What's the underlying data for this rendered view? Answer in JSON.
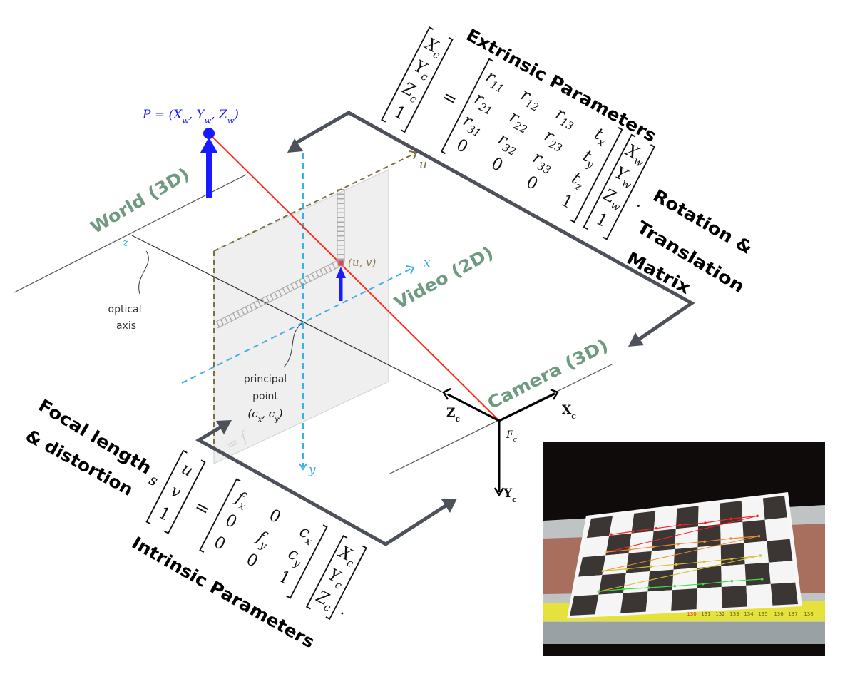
{
  "extrinsic": {
    "title": "Extrinsic Parameters",
    "lhs": [
      [
        {
          "b": "X",
          "s": "c"
        }
      ],
      [
        {
          "b": "Y",
          "s": "c"
        }
      ],
      [
        {
          "b": "Z",
          "s": "c"
        }
      ],
      [
        {
          "b": "1",
          "s": ""
        }
      ]
    ],
    "equals": "=",
    "matrix": [
      [
        [
          {
            "b": "r",
            "s": "11"
          }
        ],
        [
          {
            "b": "r",
            "s": "12"
          }
        ],
        [
          {
            "b": "r",
            "s": "13"
          }
        ],
        [
          {
            "b": "t",
            "s": "x"
          }
        ]
      ],
      [
        [
          {
            "b": "r",
            "s": "21"
          }
        ],
        [
          {
            "b": "r",
            "s": "22"
          }
        ],
        [
          {
            "b": "r",
            "s": "23"
          }
        ],
        [
          {
            "b": "t",
            "s": "y"
          }
        ]
      ],
      [
        [
          {
            "b": "r",
            "s": "31"
          }
        ],
        [
          {
            "b": "r",
            "s": "32"
          }
        ],
        [
          {
            "b": "r",
            "s": "33"
          }
        ],
        [
          {
            "b": "t",
            "s": "z"
          }
        ]
      ],
      [
        [
          {
            "b": "0",
            "s": ""
          }
        ],
        [
          {
            "b": "0",
            "s": ""
          }
        ],
        [
          {
            "b": "0",
            "s": ""
          }
        ],
        [
          {
            "b": "1",
            "s": ""
          }
        ]
      ]
    ],
    "vector": [
      [
        {
          "b": "X",
          "s": "w"
        }
      ],
      [
        {
          "b": "Y",
          "s": "w"
        }
      ],
      [
        {
          "b": "Z",
          "s": "w"
        }
      ],
      [
        {
          "b": "1",
          "s": ""
        }
      ]
    ],
    "dot": "·",
    "label_lines": [
      "Rotation &",
      "Translation",
      "Matrix"
    ]
  },
  "intrinsic": {
    "title": "Intrinsic Parameters",
    "scale": "s",
    "lhs": [
      [
        {
          "b": "u",
          "s": ""
        }
      ],
      [
        {
          "b": "v",
          "s": ""
        }
      ],
      [
        {
          "b": "1",
          "s": ""
        }
      ]
    ],
    "equals": "=",
    "matrix": [
      [
        [
          {
            "b": "f",
            "s": "x"
          }
        ],
        [
          {
            "b": "0",
            "s": ""
          }
        ],
        [
          {
            "b": "c",
            "s": "x"
          }
        ]
      ],
      [
        [
          {
            "b": "0",
            "s": ""
          }
        ],
        [
          {
            "b": "f",
            "s": "y"
          }
        ],
        [
          {
            "b": "c",
            "s": "y"
          }
        ]
      ],
      [
        [
          {
            "b": "0",
            "s": ""
          }
        ],
        [
          {
            "b": "0",
            "s": ""
          }
        ],
        [
          {
            "b": "1",
            "s": ""
          }
        ]
      ]
    ],
    "vector": [
      [
        {
          "b": "X",
          "s": "c"
        }
      ],
      [
        {
          "b": "Y",
          "s": "c"
        }
      ],
      [
        {
          "b": "Z",
          "s": "c"
        }
      ]
    ],
    "dot": ".",
    "label_lines": [
      "Focal length",
      "& distortion"
    ]
  },
  "diagram": {
    "world_label": "World (3D)",
    "video_label": "Video (2D)",
    "camera_label": "Camera (3D)",
    "point_label": [
      {
        "b": "P = (X",
        "s": "w"
      },
      {
        "b": ", Y",
        "s": "w"
      },
      {
        "b": ", Z",
        "s": "w"
      },
      {
        "b": ")",
        "s": ""
      }
    ],
    "axis_u": "u",
    "axis_x": "x",
    "axis_y": "y",
    "axis_z": "z",
    "pixel_label": "(u, v)",
    "optical_axis": [
      "optical",
      "axis"
    ],
    "principal_point": [
      "principal",
      "point"
    ],
    "principal_coords": [
      {
        "b": "(c",
        "s": "x"
      },
      {
        "b": ", c",
        "s": "y"
      },
      {
        "b": ")",
        "s": ""
      }
    ],
    "focal_mark": "= f",
    "camera_axes": {
      "z": [
        {
          "b": "Z",
          "s": "c"
        }
      ],
      "x": [
        {
          "b": "X",
          "s": "c"
        }
      ],
      "y": [
        {
          "b": "Y",
          "s": "c"
        }
      ],
      "frame": [
        {
          "b": "F",
          "s": "c"
        }
      ]
    }
  },
  "photo": {
    "ruler_labels": [
      "130",
      "131",
      "132",
      "133",
      "134",
      "135",
      "136",
      "137",
      "138"
    ]
  },
  "colors": {
    "arrow": "#4d5159",
    "point_blue": "#1a1aff",
    "axis_blue": "#3ab0e8",
    "axis_olive": "#7d7040",
    "ray_red": "#ff2a1a",
    "label_green": "#6e9a80"
  }
}
